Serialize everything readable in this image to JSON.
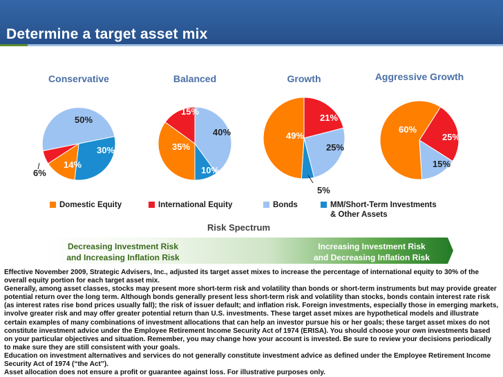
{
  "header": {
    "title": "Determine a target asset mix"
  },
  "legend": [
    {
      "label": "Domestic Equity",
      "color": "#ff7f00"
    },
    {
      "label": "International Equity",
      "color": "#ee1c25"
    },
    {
      "label": "Bonds",
      "color": "#9dc3f2"
    },
    {
      "label": "MM/Short-Term Investments",
      "label2": "& Other Assets",
      "color": "#1a8ccf"
    }
  ],
  "chart_data": [
    {
      "type": "pie",
      "title": "Conservative",
      "categories": [
        "Domestic Equity",
        "International Equity",
        "Bonds",
        "MM/Short-Term Investments & Other Assets"
      ],
      "values": [
        14,
        6,
        50,
        30
      ],
      "labels": [
        "14%",
        "6%",
        "50%",
        "30%"
      ]
    },
    {
      "type": "pie",
      "title": "Balanced",
      "categories": [
        "Domestic Equity",
        "International Equity",
        "Bonds",
        "MM/Short-Term Investments & Other Assets"
      ],
      "values": [
        35,
        15,
        40,
        10
      ],
      "labels": [
        "35%",
        "15%",
        "40%",
        "10%"
      ]
    },
    {
      "type": "pie",
      "title": "Growth",
      "categories": [
        "Domestic Equity",
        "International Equity",
        "Bonds",
        "MM/Short-Term Investments & Other Assets"
      ],
      "values": [
        49,
        21,
        25,
        5
      ],
      "labels": [
        "49%",
        "21%",
        "25%",
        "5%"
      ]
    },
    {
      "type": "pie",
      "title": "Aggressive Growth",
      "categories": [
        "Domestic Equity",
        "International Equity",
        "Bonds",
        "MM/Short-Term Investments & Other Assets"
      ],
      "values": [
        60,
        25,
        15,
        0
      ],
      "labels": [
        "60%",
        "25%",
        "15%",
        ""
      ]
    }
  ],
  "spectrum": {
    "title": "Risk Spectrum",
    "left_line1": "Decreasing Investment Risk",
    "left_line2": "and Increasing Inflation Risk",
    "right_line1": "Increasing Investment Risk",
    "right_line2": "and Decreasing Inflation Risk"
  },
  "disclaimer": {
    "p1": "Effective November 2009, Strategic Advisers, Inc., adjusted its target asset mixes to increase the percentage of international equity to 30% of the overall equity portion for each target asset mix.",
    "p2": "Generally, among asset classes, stocks may present more short-term risk and volatility than bonds or short-term instruments but may provide greater potential return over the long term. Although bonds generally present less short-term risk and volatility than stocks, bonds contain interest rate risk (as interest rates rise bond prices usually fall); the risk of issuer default; and inflation risk. Foreign investments, especially those in emerging markets, involve greater risk and may offer greater potential return than U.S. investments. These target asset mixes are hypothetical models and illustrate certain examples of many combinations of investment allocations that can help an investor pursue his or her goals; these target asset mixes do not constitute investment advice under the Employee Retirement Income Security Act of 1974 (ERISA). You should choose your own investments based on your particular objectives and situation. Remember, you may change how your account is invested. Be sure to review your decisions periodically to make sure they are still consistent with your goals.",
    "p3": "Education on investment alternatives and services do not generally constitute investment advice as defined under the Employee Retirement Income Security Act of 1974 (“the Act”).",
    "p4": "Asset allocation does not ensure a profit or guarantee against loss. For illustrative purposes only."
  }
}
